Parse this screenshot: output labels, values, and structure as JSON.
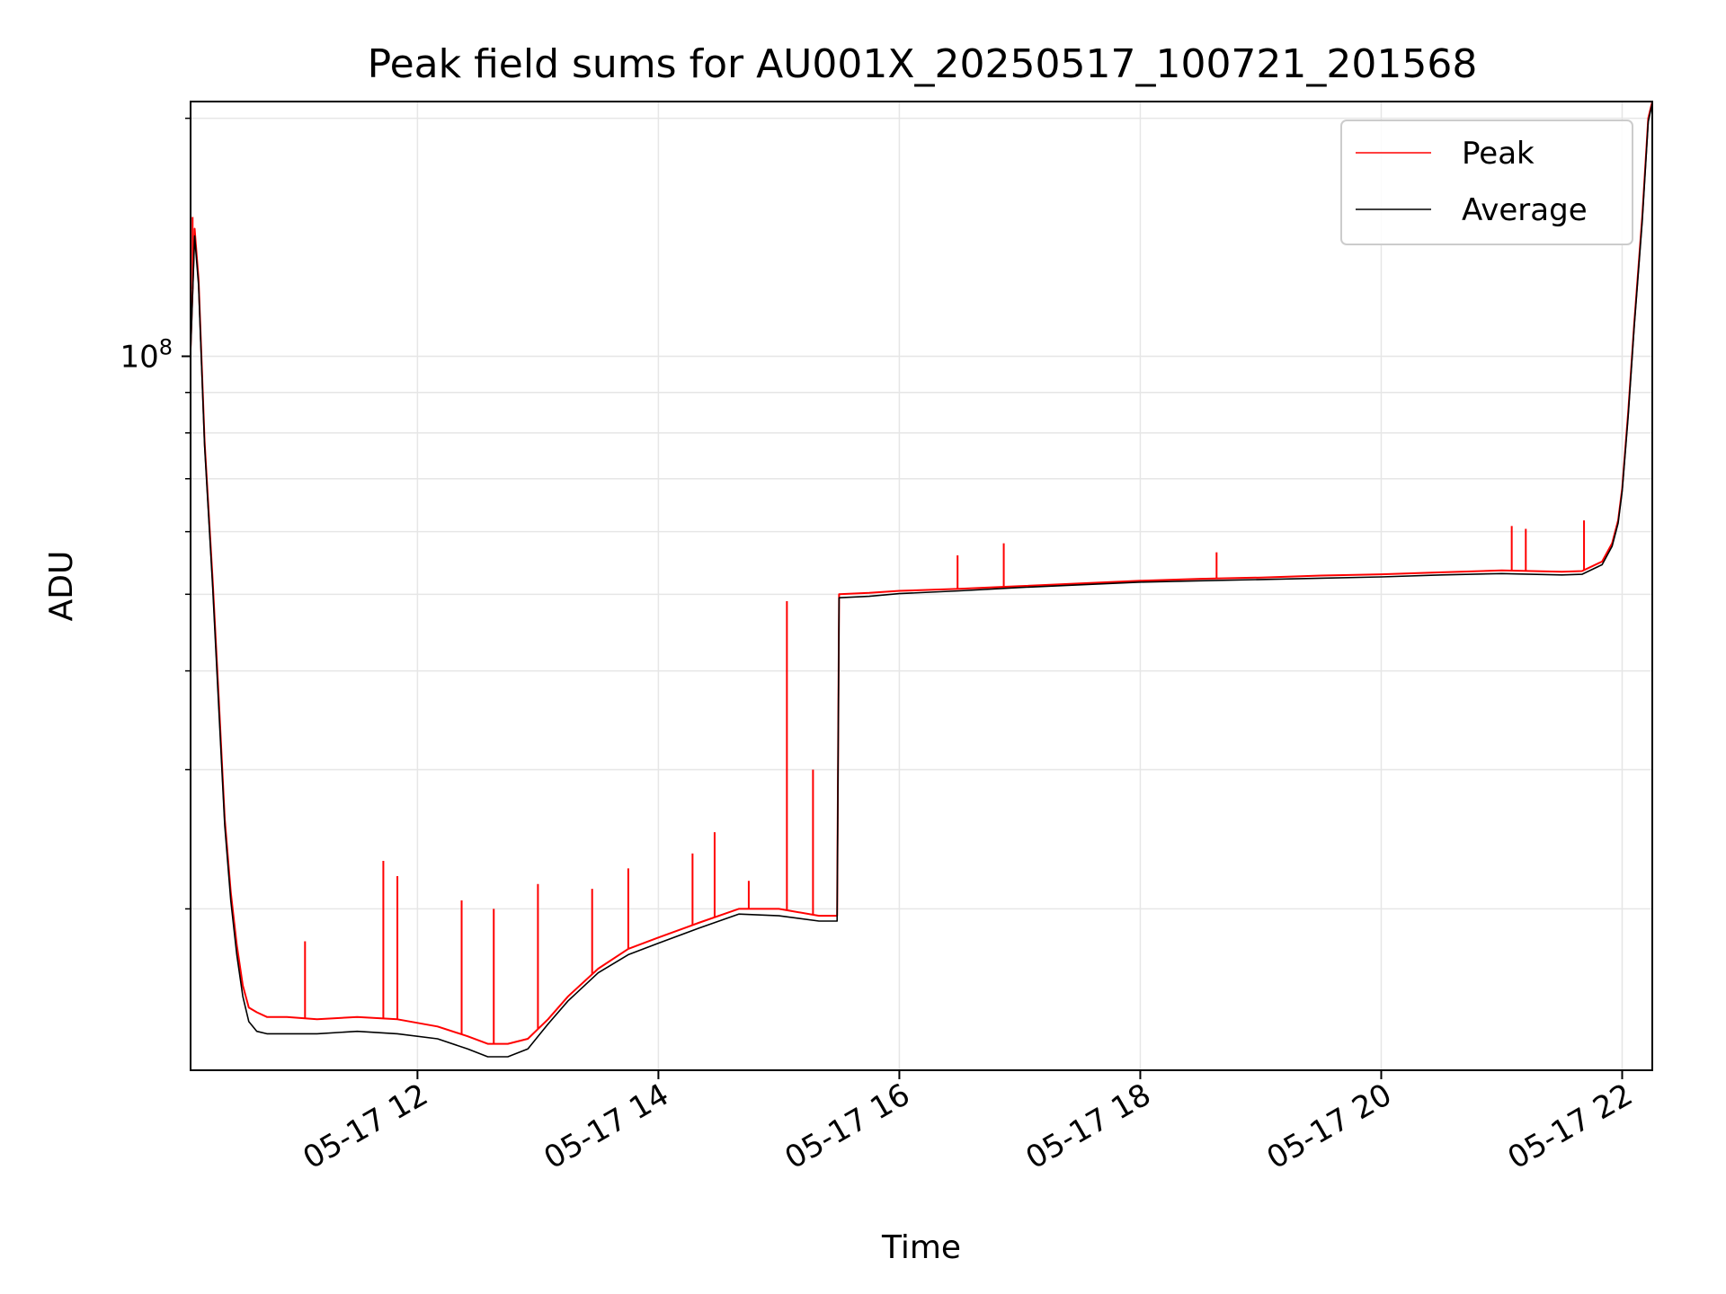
{
  "chart_data": {
    "type": "line",
    "title": "Peak field sums for AU001X_20250517_100721_201568",
    "xlabel": "Time",
    "ylabel": "ADU",
    "yscale": "log",
    "grid": true,
    "legend_position": "top-right",
    "xlim": [
      "2025-05-17 10:07",
      "2025-05-17 22:15"
    ],
    "ylim": [
      12500000,
      210000000
    ],
    "x_ticks": [
      {
        "value": "2025-05-17 12:00",
        "label": "05-17 12"
      },
      {
        "value": "2025-05-17 14:00",
        "label": "05-17 14"
      },
      {
        "value": "2025-05-17 16:00",
        "label": "05-17 16"
      },
      {
        "value": "2025-05-17 18:00",
        "label": "05-17 18"
      },
      {
        "value": "2025-05-17 20:00",
        "label": "05-17 20"
      },
      {
        "value": "2025-05-17 22:00",
        "label": "05-17 22"
      }
    ],
    "y_ticks": [
      {
        "value": 100000000,
        "base": "10",
        "exp": "8"
      }
    ],
    "series": [
      {
        "name": "Peak",
        "color": "#ff0000",
        "x": [
          "2025-05-17 10:07",
          "2025-05-17 10:09",
          "2025-05-17 10:11",
          "2025-05-17 10:14",
          "2025-05-17 10:18",
          "2025-05-17 10:21",
          "2025-05-17 10:24",
          "2025-05-17 10:27",
          "2025-05-17 10:30",
          "2025-05-17 10:33",
          "2025-05-17 10:36",
          "2025-05-17 10:40",
          "2025-05-17 10:45",
          "2025-05-17 10:55",
          "2025-05-17 11:10",
          "2025-05-17 11:30",
          "2025-05-17 11:50",
          "2025-05-17 12:10",
          "2025-05-17 12:25",
          "2025-05-17 12:35",
          "2025-05-17 12:45",
          "2025-05-17 12:55",
          "2025-05-17 13:05",
          "2025-05-17 13:15",
          "2025-05-17 13:30",
          "2025-05-17 13:45",
          "2025-05-17 14:00",
          "2025-05-17 14:20",
          "2025-05-17 14:40",
          "2025-05-17 15:00",
          "2025-05-17 15:20",
          "2025-05-17 15:29",
          "2025-05-17 15:30",
          "2025-05-17 15:45",
          "2025-05-17 16:00",
          "2025-05-17 16:30",
          "2025-05-17 17:00",
          "2025-05-17 17:30",
          "2025-05-17 18:00",
          "2025-05-17 18:30",
          "2025-05-17 19:00",
          "2025-05-17 19:30",
          "2025-05-17 20:00",
          "2025-05-17 20:30",
          "2025-05-17 21:00",
          "2025-05-17 21:30",
          "2025-05-17 21:40",
          "2025-05-17 21:50",
          "2025-05-17 21:55",
          "2025-05-17 21:58",
          "2025-05-17 22:00",
          "2025-05-17 22:03",
          "2025-05-17 22:06",
          "2025-05-17 22:10",
          "2025-05-17 22:13",
          "2025-05-17 22:15"
        ],
        "y": [
          102000000,
          145000000,
          125000000,
          78000000,
          52000000,
          37000000,
          26000000,
          21000000,
          18000000,
          16000000,
          15000000,
          14800000,
          14600000,
          14600000,
          14500000,
          14600000,
          14500000,
          14200000,
          13800000,
          13500000,
          13500000,
          13700000,
          14500000,
          15500000,
          16800000,
          17800000,
          18400000,
          19200000,
          20000000,
          20000000,
          19600000,
          19600000,
          50000000,
          50200000,
          50500000,
          50800000,
          51200000,
          51600000,
          52000000,
          52300000,
          52500000,
          52800000,
          53000000,
          53300000,
          53600000,
          53400000,
          53500000,
          55000000,
          58000000,
          62000000,
          68000000,
          85000000,
          110000000,
          150000000,
          200000000,
          210000000
        ],
        "spikes": [
          {
            "x": "2025-05-17 10:08",
            "y": 150000000
          },
          {
            "x": "2025-05-17 11:04",
            "y": 18200000
          },
          {
            "x": "2025-05-17 11:43",
            "y": 23000000
          },
          {
            "x": "2025-05-17 11:50",
            "y": 22000000
          },
          {
            "x": "2025-05-17 12:22",
            "y": 20500000
          },
          {
            "x": "2025-05-17 12:38",
            "y": 20000000
          },
          {
            "x": "2025-05-17 13:00",
            "y": 21500000
          },
          {
            "x": "2025-05-17 13:27",
            "y": 21200000
          },
          {
            "x": "2025-05-17 13:45",
            "y": 22500000
          },
          {
            "x": "2025-05-17 14:17",
            "y": 23500000
          },
          {
            "x": "2025-05-17 14:28",
            "y": 25000000
          },
          {
            "x": "2025-05-17 14:45",
            "y": 21700000
          },
          {
            "x": "2025-05-17 15:04",
            "y": 49000000
          },
          {
            "x": "2025-05-17 15:17",
            "y": 30000000
          },
          {
            "x": "2025-05-17 16:29",
            "y": 56000000
          },
          {
            "x": "2025-05-17 16:52",
            "y": 58000000
          },
          {
            "x": "2025-05-17 18:38",
            "y": 56500000
          },
          {
            "x": "2025-05-17 21:05",
            "y": 61000000
          },
          {
            "x": "2025-05-17 21:12",
            "y": 60500000
          },
          {
            "x": "2025-05-17 21:41",
            "y": 62000000
          }
        ]
      },
      {
        "name": "Average",
        "color": "#000000",
        "x": [
          "2025-05-17 10:07",
          "2025-05-17 10:09",
          "2025-05-17 10:11",
          "2025-05-17 10:14",
          "2025-05-17 10:18",
          "2025-05-17 10:21",
          "2025-05-17 10:24",
          "2025-05-17 10:27",
          "2025-05-17 10:30",
          "2025-05-17 10:33",
          "2025-05-17 10:36",
          "2025-05-17 10:40",
          "2025-05-17 10:45",
          "2025-05-17 10:55",
          "2025-05-17 11:10",
          "2025-05-17 11:30",
          "2025-05-17 11:50",
          "2025-05-17 12:10",
          "2025-05-17 12:25",
          "2025-05-17 12:35",
          "2025-05-17 12:45",
          "2025-05-17 12:55",
          "2025-05-17 13:05",
          "2025-05-17 13:15",
          "2025-05-17 13:30",
          "2025-05-17 13:45",
          "2025-05-17 14:00",
          "2025-05-17 14:20",
          "2025-05-17 14:40",
          "2025-05-17 15:00",
          "2025-05-17 15:20",
          "2025-05-17 15:29",
          "2025-05-17 15:30",
          "2025-05-17 15:45",
          "2025-05-17 16:00",
          "2025-05-17 16:30",
          "2025-05-17 17:00",
          "2025-05-17 17:30",
          "2025-05-17 18:00",
          "2025-05-17 18:30",
          "2025-05-17 19:00",
          "2025-05-17 19:30",
          "2025-05-17 20:00",
          "2025-05-17 20:30",
          "2025-05-17 21:00",
          "2025-05-17 21:30",
          "2025-05-17 21:40",
          "2025-05-17 21:50",
          "2025-05-17 21:55",
          "2025-05-17 21:58",
          "2025-05-17 22:00",
          "2025-05-17 22:03",
          "2025-05-17 22:06",
          "2025-05-17 22:10",
          "2025-05-17 22:13",
          "2025-05-17 22:15"
        ],
        "y": [
          101000000,
          142000000,
          123000000,
          77000000,
          51000000,
          36000000,
          25500000,
          20500000,
          17500000,
          15500000,
          14400000,
          14000000,
          13900000,
          13900000,
          13900000,
          14000000,
          13900000,
          13700000,
          13300000,
          13000000,
          13000000,
          13300000,
          14300000,
          15300000,
          16600000,
          17500000,
          18100000,
          18900000,
          19700000,
          19600000,
          19300000,
          19300000,
          49500000,
          49700000,
          50100000,
          50500000,
          51000000,
          51400000,
          51800000,
          52000000,
          52200000,
          52400000,
          52600000,
          52900000,
          53100000,
          52900000,
          53000000,
          54500000,
          57500000,
          61500000,
          67500000,
          84000000,
          109000000,
          148000000,
          198000000,
          209000000
        ]
      }
    ]
  }
}
